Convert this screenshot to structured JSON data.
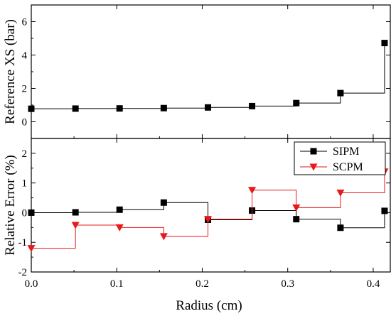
{
  "chart_data": [
    {
      "type": "line",
      "panel": "top",
      "step": true,
      "ylabel": "Reference XS (bar)",
      "ylim": [
        -1,
        7
      ],
      "yticks": [
        "0",
        "2",
        "4",
        "6"
      ],
      "grid": false,
      "series": [
        {
          "color": "#000000",
          "marker": "square",
          "x": [
            0.0,
            0.0517,
            0.1033,
            0.155,
            0.2067,
            0.2583,
            0.31,
            0.3617,
            0.4133
          ],
          "y": [
            0.78,
            0.79,
            0.8,
            0.82,
            0.86,
            0.94,
            1.12,
            1.72,
            4.72
          ]
        }
      ]
    },
    {
      "type": "line",
      "panel": "bottom",
      "step": true,
      "xlabel": "Radius (cm)",
      "ylabel": "Relative Error (%)",
      "xlim": [
        0,
        0.42
      ],
      "ylim": [
        -2,
        2.5
      ],
      "xticks": [
        "0.0",
        "0.1",
        "0.2",
        "0.3",
        "0.4"
      ],
      "yticks": [
        "-2",
        "-1",
        "0",
        "1",
        "2"
      ],
      "grid": false,
      "legend": "top-right",
      "series": [
        {
          "name": "SIPM",
          "color": "#000000",
          "marker": "square",
          "x": [
            0.0,
            0.0517,
            0.1033,
            0.155,
            0.2067,
            0.2583,
            0.31,
            0.3617,
            0.4133
          ],
          "y": [
            0.0,
            0.01,
            0.1,
            0.34,
            -0.24,
            0.07,
            -0.22,
            -0.51,
            0.06
          ]
        },
        {
          "name": "SCPM",
          "color": "#e8191a",
          "marker": "triangle-down",
          "x": [
            0.0,
            0.0517,
            0.1033,
            0.155,
            0.2067,
            0.2583,
            0.31,
            0.3617,
            0.4133
          ],
          "y": [
            -1.2,
            -0.42,
            -0.5,
            -0.8,
            -0.22,
            0.76,
            0.17,
            0.67,
            1.38
          ]
        }
      ]
    }
  ]
}
